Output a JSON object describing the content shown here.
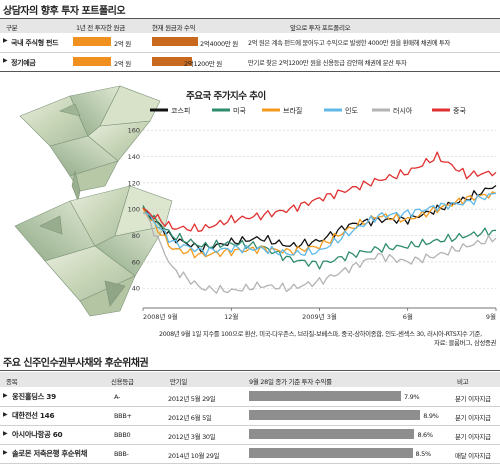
{
  "portfolio": {
    "title": "상담자의 향후 투자 포트폴리오",
    "headers": [
      "구분",
      "1년 전 투자한 원금",
      "현재 원금과 수익",
      "앞으로 투자 포트폴리오"
    ],
    "rows": [
      {
        "name": "국내 주식형 펀드",
        "principal": "2억 원",
        "current": "2억4000만 원",
        "plan": "2억 원은 계속 펀드에 묻어두고 수익으로 발생한 4000만 원을 환매해 채권에 투자",
        "principal_frac": 1.0,
        "current_frac": 1.2
      },
      {
        "name": "정기예금",
        "principal": "2억 원",
        "current": "2억1200만 원",
        "plan": "만기로 찾은 2억1200만 원을 신용등급 감안해 채권에 분산 투자",
        "principal_frac": 1.0,
        "current_frac": 1.06
      }
    ],
    "colors": {
      "principal": "#f0901e",
      "current": "#c8691e"
    }
  },
  "chart": {
    "title": "주요국 주가지수 추이",
    "footnote": "2008년 9월 1일 지수를 100으로 환산, 미국-다우존스, 브라질-보베스파, 중국-상하이종합, 인도-센섹스 30, 러시아-RTS지수 기준,",
    "source": "자료: 블룸버그, 삼성증권"
  },
  "chart_data": {
    "type": "line",
    "title": "주요국 주가지수 추이",
    "x": [
      "2008년 9월",
      "10월",
      "11월",
      "12월",
      "2009년 1월",
      "2월",
      "3월",
      "4월",
      "5월",
      "6월",
      "7월",
      "8월",
      "9월"
    ],
    "x_ticks": [
      "2008년 9월",
      "12월",
      "2009년 3월",
      "6월",
      "9월"
    ],
    "y_ticks": [
      40,
      60,
      80,
      100,
      120,
      140,
      160
    ],
    "ylim": [
      25,
      170
    ],
    "series": [
      {
        "name": "코스피",
        "color": "#111111",
        "values": [
          100,
          78,
          70,
          75,
          78,
          72,
          76,
          88,
          92,
          92,
          100,
          108,
          118
        ]
      },
      {
        "name": "미국",
        "color": "#2e8b6e",
        "values": [
          100,
          80,
          72,
          74,
          72,
          62,
          58,
          65,
          70,
          72,
          76,
          80,
          84
        ]
      },
      {
        "name": "브라질",
        "color": "#f39a1d",
        "values": [
          100,
          70,
          65,
          68,
          70,
          68,
          72,
          85,
          95,
          92,
          100,
          108,
          112
        ]
      },
      {
        "name": "인도",
        "color": "#5fb8e6",
        "values": [
          100,
          75,
          68,
          70,
          70,
          66,
          68,
          82,
          95,
          97,
          102,
          105,
          112
        ]
      },
      {
        "name": "러시아",
        "color": "#b3b3b3",
        "values": [
          100,
          55,
          40,
          38,
          42,
          40,
          45,
          55,
          65,
          60,
          65,
          72,
          78
        ]
      },
      {
        "name": "중국",
        "color": "#e03030",
        "values": [
          100,
          86,
          85,
          92,
          95,
          100,
          108,
          115,
          122,
          128,
          140,
          126,
          128
        ]
      }
    ],
    "grid": true,
    "legend": "top"
  },
  "bonds": {
    "title": "주요 신주인수권부사채와 후순위채권",
    "headers": [
      "종목",
      "신용등급",
      "만기일",
      "9월 28일 종가 기준 투자 수익률",
      "비고"
    ],
    "rows": [
      {
        "name": "웅진홀딩스 39",
        "rating": "A-",
        "maturity": "2012년 5월 29일",
        "yield": "7.9%",
        "yield_value": 7.9,
        "note": "분기 이자지급"
      },
      {
        "name": "대한전선 146",
        "rating": "BBB+",
        "maturity": "2012년 6월 5일",
        "yield": "8.9%",
        "yield_value": 8.9,
        "note": "분기 이자지급"
      },
      {
        "name": "아시아나항공 60",
        "rating": "BBB0",
        "maturity": "2012년 3월 30일",
        "yield": "8.6%",
        "yield_value": 8.6,
        "note": "분기 이자지급"
      },
      {
        "name": "솔로몬 저축은행 후순위채",
        "rating": "BBB-",
        "maturity": "2014년 10월 29일",
        "yield": "8.5%",
        "yield_value": 8.5,
        "note": "매달 이자지급"
      }
    ],
    "bar_color": "#8e8e8e"
  }
}
